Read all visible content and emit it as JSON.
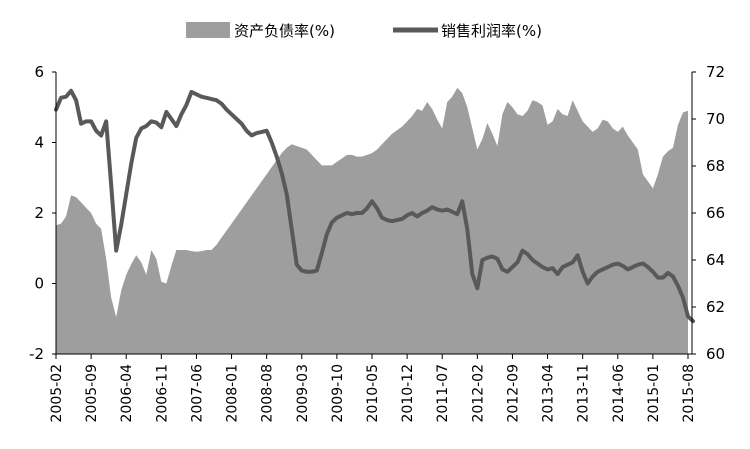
{
  "chart_data": {
    "type": "area+line",
    "title": "",
    "legend": {
      "placement": "top-center",
      "entries": [
        {
          "name": "资产负债率(%)",
          "kind": "area",
          "color": "#9e9e9e"
        },
        {
          "name": "销售利润率(%)",
          "kind": "line",
          "color": "#595959"
        }
      ]
    },
    "x_ticks": [
      "2005-02",
      "2005-09",
      "2006-04",
      "2006-11",
      "2007-06",
      "2008-01",
      "2008-08",
      "2009-03",
      "2009-10",
      "2010-05",
      "2010-12",
      "2011-07",
      "2012-02",
      "2012-09",
      "2013-04",
      "2013-11",
      "2014-06",
      "2015-01",
      "2015-08"
    ],
    "y_left": {
      "min": -2,
      "max": 6,
      "ticks": [
        "-2",
        "0",
        "2",
        "4",
        "6"
      ]
    },
    "y_right": {
      "min": 60,
      "max": 72,
      "ticks": [
        "60",
        "62",
        "64",
        "66",
        "68",
        "70",
        "72"
      ]
    },
    "series": [
      {
        "name": "资产负债率(%)",
        "axis": "left",
        "values": [
          1.65,
          1.7,
          1.9,
          2.5,
          2.45,
          2.3,
          2.15,
          2.0,
          1.7,
          1.55,
          0.7,
          -0.4,
          -0.95,
          -0.2,
          0.25,
          0.55,
          0.8,
          0.6,
          0.25,
          0.95,
          0.7,
          0.05,
          0.0,
          0.5,
          0.95,
          0.95,
          0.95,
          0.92,
          0.9,
          0.92,
          0.95,
          0.95,
          1.1,
          1.3,
          1.5,
          1.7,
          1.9,
          2.1,
          2.3,
          2.5,
          2.7,
          2.9,
          3.1,
          3.3,
          3.5,
          3.7,
          3.85,
          3.95,
          3.9,
          3.85,
          3.8,
          3.65,
          3.5,
          3.35,
          3.35,
          3.35,
          3.45,
          3.55,
          3.65,
          3.65,
          3.6,
          3.6,
          3.65,
          3.7,
          3.8,
          3.95,
          4.1,
          4.25,
          4.35,
          4.45,
          4.6,
          4.75,
          4.95,
          4.9,
          5.15,
          4.95,
          4.65,
          4.4,
          5.15,
          5.3,
          5.55,
          5.4,
          5.0,
          4.4,
          3.8,
          4.1,
          4.55,
          4.25,
          3.9,
          4.8,
          5.15,
          5.0,
          4.8,
          4.75,
          4.9,
          5.2,
          5.15,
          5.05,
          4.5,
          4.6,
          4.95,
          4.8,
          4.75,
          5.2,
          4.9,
          4.6,
          4.45,
          4.3,
          4.4,
          4.65,
          4.6,
          4.4,
          4.3,
          4.45,
          4.2,
          4.0,
          3.8,
          3.1,
          2.9,
          2.7,
          3.1,
          3.6,
          3.75,
          3.85,
          4.5,
          4.85,
          4.9
        ]
      },
      {
        "name": "销售利润率(%)",
        "axis": "right",
        "values": [
          70.4,
          70.9,
          70.95,
          71.2,
          70.8,
          69.8,
          69.9,
          69.9,
          69.5,
          69.3,
          69.9,
          67.2,
          64.4,
          65.5,
          66.8,
          68.1,
          69.2,
          69.6,
          69.7,
          69.9,
          69.85,
          69.65,
          70.3,
          70.0,
          69.7,
          70.2,
          70.6,
          71.15,
          71.05,
          70.95,
          70.9,
          70.85,
          70.8,
          70.65,
          70.4,
          70.2,
          70.0,
          69.8,
          69.5,
          69.3,
          69.4,
          69.45,
          69.5,
          69.0,
          68.4,
          67.7,
          66.8,
          65.3,
          63.8,
          63.55,
          63.5,
          63.5,
          63.55,
          64.3,
          65.1,
          65.6,
          65.8,
          65.9,
          66.0,
          65.95,
          66.0,
          66.0,
          66.2,
          66.5,
          66.2,
          65.8,
          65.7,
          65.65,
          65.7,
          65.75,
          65.9,
          66.0,
          65.85,
          66.0,
          66.1,
          66.25,
          66.15,
          66.1,
          66.15,
          66.05,
          65.95,
          66.5,
          65.3,
          63.4,
          62.8,
          64.0,
          64.1,
          64.15,
          64.05,
          63.6,
          63.5,
          63.7,
          63.9,
          64.4,
          64.25,
          64.0,
          63.85,
          63.7,
          63.6,
          63.65,
          63.4,
          63.7,
          63.8,
          63.9,
          64.2,
          63.5,
          63.0,
          63.3,
          63.5,
          63.6,
          63.7,
          63.8,
          63.85,
          63.75,
          63.6,
          63.7,
          63.8,
          63.85,
          63.7,
          63.5,
          63.25,
          63.25,
          63.45,
          63.3,
          62.9,
          62.4,
          61.6,
          61.4
        ]
      }
    ]
  }
}
